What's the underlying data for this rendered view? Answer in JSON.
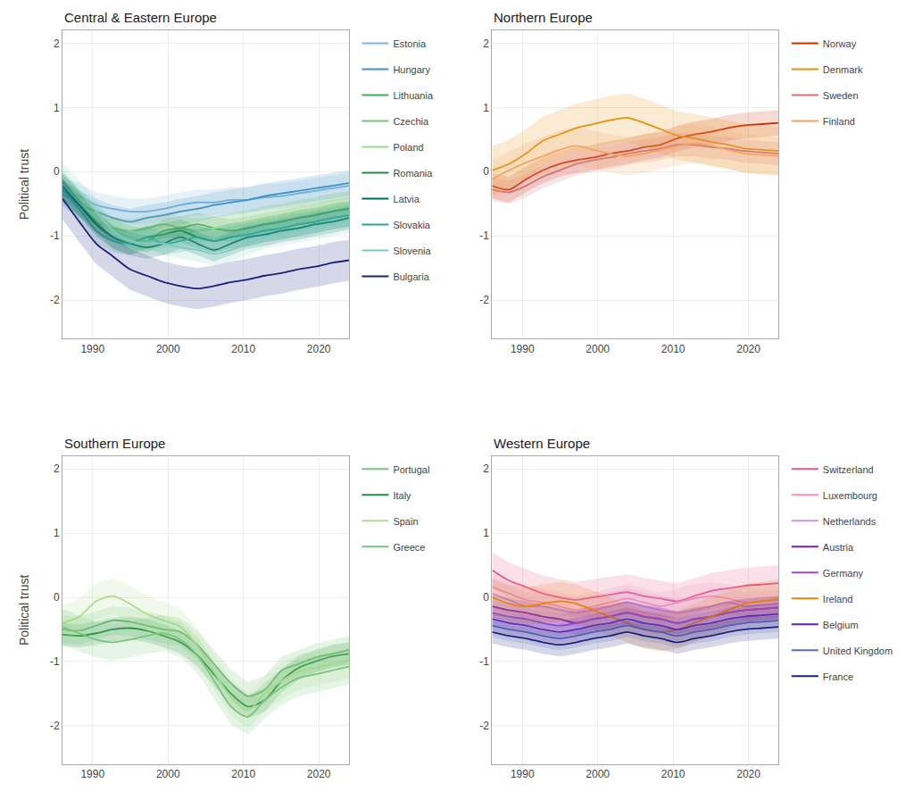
{
  "chart_data": [
    {
      "type": "line",
      "title": "Central & Eastern Europe",
      "ylabel": "Political trust",
      "x": [
        1986,
        1988.235294117647,
        1990.470588235294,
        1992.705882352941,
        1994.941176470588,
        1997.176470588235,
        1999.411764705882,
        2001.647058823529,
        2003.882352941176,
        2006.117647058824,
        2008.352941176471,
        2010.588235294118,
        2012.823529411765,
        2015.058823529412,
        2017.294117647059,
        2019.529411764706,
        2021.764705882353,
        2024
      ],
      "xlim": [
        1986,
        2024
      ],
      "xticks": [
        1990,
        2000,
        2010,
        2020
      ],
      "ylim": [
        -2.6,
        2.2
      ],
      "yticks": [
        -2,
        -1,
        0,
        1,
        2
      ],
      "grid": true,
      "series": [
        {
          "name": "Estonia",
          "color": "#7ab8d9",
          "values": [
            -0.3,
            -0.38,
            -0.52,
            -0.58,
            -0.62,
            -0.62,
            -0.58,
            -0.52,
            -0.48,
            -0.48,
            -0.44,
            -0.44,
            -0.4,
            -0.38,
            -0.34,
            -0.3,
            -0.26,
            -0.22
          ],
          "ci": 0.2
        },
        {
          "name": "Hungary",
          "color": "#4292c6",
          "values": [
            -0.35,
            -0.5,
            -0.62,
            -0.72,
            -0.78,
            -0.72,
            -0.68,
            -0.62,
            -0.58,
            -0.52,
            -0.48,
            -0.44,
            -0.38,
            -0.34,
            -0.3,
            -0.26,
            -0.22,
            -0.18
          ],
          "ci": 0.2
        },
        {
          "name": "Lithuania",
          "color": "#41ab5d",
          "values": [
            -0.15,
            -0.45,
            -0.72,
            -0.92,
            -1.02,
            -1.08,
            -0.92,
            -0.88,
            -0.82,
            -0.88,
            -0.92,
            -0.88,
            -0.82,
            -0.78,
            -0.72,
            -0.68,
            -0.62,
            -0.58
          ],
          "ci": 0.18
        },
        {
          "name": "Czechia",
          "color": "#74c476",
          "values": [
            -0.28,
            -0.52,
            -0.78,
            -0.88,
            -0.92,
            -0.88,
            -0.82,
            -0.88,
            -0.92,
            -0.88,
            -0.82,
            -0.78,
            -0.72,
            -0.68,
            -0.62,
            -0.58,
            -0.52,
            -0.48
          ],
          "ci": 0.18
        },
        {
          "name": "Poland",
          "color": "#a1d99b",
          "values": [
            -0.2,
            -0.48,
            -0.72,
            -0.92,
            -1.02,
            -1.08,
            -1.02,
            -0.98,
            -0.92,
            -0.88,
            -0.82,
            -0.78,
            -0.72,
            -0.68,
            -0.62,
            -0.58,
            -0.52,
            -0.48
          ],
          "ci": 0.18
        },
        {
          "name": "Romania",
          "color": "#238b45",
          "values": [
            -0.28,
            -0.52,
            -0.78,
            -1.02,
            -1.12,
            -1.02,
            -0.98,
            -0.92,
            -1.02,
            -1.08,
            -1.02,
            -0.98,
            -0.92,
            -0.88,
            -0.82,
            -0.78,
            -0.72,
            -0.68
          ],
          "ci": 0.18
        },
        {
          "name": "Latvia",
          "color": "#006d5b",
          "values": [
            -0.22,
            -0.52,
            -0.82,
            -1.02,
            -1.12,
            -1.18,
            -1.12,
            -1.02,
            -1.12,
            -1.22,
            -1.12,
            -1.02,
            -0.98,
            -0.92,
            -0.88,
            -0.82,
            -0.78,
            -0.72
          ],
          "ci": 0.18
        },
        {
          "name": "Slovakia",
          "color": "#26a69a",
          "values": [
            -0.28,
            -0.58,
            -0.92,
            -1.08,
            -1.12,
            -1.02,
            -1.12,
            -1.08,
            -1.02,
            -1.08,
            -1.02,
            -0.98,
            -0.92,
            -0.88,
            -0.82,
            -0.78,
            -0.72,
            -0.68
          ],
          "ci": 0.18
        },
        {
          "name": "Slovenia",
          "color": "#80cbc4",
          "values": [
            -0.05,
            -0.32,
            -0.62,
            -0.92,
            -1.08,
            -1.12,
            -1.12,
            -1.18,
            -1.22,
            -1.28,
            -1.22,
            -1.12,
            -1.02,
            -0.98,
            -0.92,
            -0.88,
            -0.82,
            -0.78
          ],
          "ci": 0.18
        },
        {
          "name": "Bulgaria",
          "color": "#1a237e",
          "values": [
            -0.42,
            -0.78,
            -1.12,
            -1.32,
            -1.52,
            -1.62,
            -1.72,
            -1.78,
            -1.82,
            -1.78,
            -1.72,
            -1.68,
            -1.62,
            -1.58,
            -1.52,
            -1.48,
            -1.42,
            -1.38
          ],
          "ci": 0.32
        }
      ]
    },
    {
      "type": "line",
      "title": "Northern Europe",
      "x": [
        1986,
        1988.235294117647,
        1990.470588235294,
        1992.705882352941,
        1994.941176470588,
        1997.176470588235,
        1999.411764705882,
        2001.647058823529,
        2003.882352941176,
        2006.117647058824,
        2008.352941176471,
        2010.588235294118,
        2012.823529411765,
        2015.058823529412,
        2017.294117647059,
        2019.529411764706,
        2021.764705882353,
        2024
      ],
      "xlim": [
        1986,
        2024
      ],
      "xticks": [
        1990,
        2000,
        2010,
        2020
      ],
      "ylim": [
        -2.6,
        2.2
      ],
      "yticks": [
        -2,
        -1,
        0,
        1,
        2
      ],
      "grid": true,
      "series": [
        {
          "name": "Norway",
          "color": "#cc2b00",
          "values": [
            -0.22,
            -0.28,
            -0.12,
            0.02,
            0.12,
            0.18,
            0.22,
            0.28,
            0.32,
            0.38,
            0.42,
            0.52,
            0.58,
            0.62,
            0.68,
            0.72,
            0.74,
            0.76
          ],
          "ci": 0.2
        },
        {
          "name": "Denmark",
          "color": "#e8900a",
          "values": [
            0.02,
            0.12,
            0.28,
            0.48,
            0.58,
            0.68,
            0.74,
            0.8,
            0.84,
            0.76,
            0.66,
            0.56,
            0.52,
            0.46,
            0.42,
            0.36,
            0.34,
            0.32
          ],
          "ci": 0.38
        },
        {
          "name": "Sweden",
          "color": "#d4727a",
          "values": [
            -0.28,
            -0.32,
            -0.22,
            -0.08,
            0.02,
            0.12,
            0.18,
            0.22,
            0.28,
            0.32,
            0.36,
            0.42,
            0.42,
            0.38,
            0.36,
            0.32,
            0.3,
            0.28
          ],
          "ci": 0.18
        },
        {
          "name": "Finland",
          "color": "#f4a460",
          "values": [
            -0.12,
            0.02,
            0.14,
            0.24,
            0.34,
            0.4,
            0.34,
            0.28,
            0.24,
            0.28,
            0.34,
            0.4,
            0.44,
            0.4,
            0.34,
            0.28,
            0.26,
            0.24
          ],
          "ci": 0.3
        }
      ]
    },
    {
      "type": "line",
      "title": "Southern Europe",
      "ylabel": "Political trust",
      "x": [
        1986,
        1988.235294117647,
        1990.470588235294,
        1992.705882352941,
        1994.941176470588,
        1997.176470588235,
        1999.411764705882,
        2001.647058823529,
        2003.882352941176,
        2006.117647058824,
        2008.352941176471,
        2010.588235294118,
        2012.823529411765,
        2015.058823529412,
        2017.294117647059,
        2019.529411764706,
        2021.764705882353,
        2024
      ],
      "xlim": [
        1986,
        2024
      ],
      "xticks": [
        1990,
        2000,
        2010,
        2020
      ],
      "ylim": [
        -2.6,
        2.2
      ],
      "yticks": [
        -2,
        -1,
        0,
        1,
        2
      ],
      "grid": true,
      "series": [
        {
          "name": "Portugal",
          "color": "#74c476",
          "values": [
            -0.5,
            -0.52,
            -0.44,
            -0.36,
            -0.38,
            -0.44,
            -0.5,
            -0.54,
            -0.74,
            -1.04,
            -1.34,
            -1.54,
            -1.44,
            -1.14,
            -1.04,
            -0.94,
            -0.88,
            -0.82
          ],
          "ci": 0.22
        },
        {
          "name": "Italy",
          "color": "#238b45",
          "values": [
            -0.58,
            -0.6,
            -0.56,
            -0.5,
            -0.48,
            -0.52,
            -0.6,
            -0.7,
            -0.9,
            -1.2,
            -1.5,
            -1.7,
            -1.6,
            -1.3,
            -1.1,
            -1.0,
            -0.92,
            -0.88
          ],
          "ci": 0.18
        },
        {
          "name": "Spain",
          "color": "#addd8e",
          "values": [
            -0.4,
            -0.3,
            -0.06,
            0.02,
            -0.1,
            -0.26,
            -0.36,
            -0.46,
            -0.76,
            -1.16,
            -1.56,
            -1.76,
            -1.5,
            -1.3,
            -1.16,
            -1.1,
            -1.04,
            -0.98
          ],
          "ci": 0.28
        },
        {
          "name": "Greece",
          "color": "#78c679",
          "values": [
            -0.46,
            -0.56,
            -0.66,
            -0.7,
            -0.66,
            -0.6,
            -0.56,
            -0.66,
            -0.9,
            -1.3,
            -1.7,
            -1.86,
            -1.6,
            -1.4,
            -1.26,
            -1.2,
            -1.14,
            -1.08
          ],
          "ci": 0.28
        }
      ]
    },
    {
      "type": "line",
      "title": "Western Europe",
      "x": [
        1986,
        1988.235294117647,
        1990.470588235294,
        1992.705882352941,
        1994.941176470588,
        1997.176470588235,
        1999.411764705882,
        2001.647058823529,
        2003.882352941176,
        2006.117647058824,
        2008.352941176471,
        2010.588235294118,
        2012.823529411765,
        2015.058823529412,
        2017.294117647059,
        2019.529411764706,
        2021.764705882353,
        2024
      ],
      "xlim": [
        1986,
        2024
      ],
      "xticks": [
        1990,
        2000,
        2010,
        2020
      ],
      "ylim": [
        -2.6,
        2.2
      ],
      "yticks": [
        -2,
        -1,
        0,
        1,
        2
      ],
      "grid": true,
      "series": [
        {
          "name": "Switzerland",
          "color": "#e8528c",
          "values": [
            0.42,
            0.26,
            0.16,
            0.06,
            0.0,
            -0.04,
            0.0,
            0.04,
            0.08,
            0.02,
            -0.02,
            -0.06,
            0.02,
            0.1,
            0.14,
            0.18,
            0.2,
            0.22
          ],
          "ci": 0.28
        },
        {
          "name": "Luxembourg",
          "color": "#f48fb1",
          "values": [
            0.16,
            0.06,
            -0.04,
            -0.08,
            -0.14,
            -0.2,
            -0.14,
            -0.08,
            -0.02,
            -0.08,
            -0.14,
            -0.08,
            -0.02,
            0.02,
            -0.02,
            -0.08,
            -0.06,
            -0.04
          ],
          "ci": 0.22
        },
        {
          "name": "Netherlands",
          "color": "#ce93d8",
          "values": [
            0.06,
            -0.04,
            -0.14,
            -0.14,
            -0.2,
            -0.24,
            -0.2,
            -0.14,
            -0.08,
            -0.14,
            -0.2,
            -0.24,
            -0.2,
            -0.14,
            -0.08,
            -0.14,
            -0.12,
            -0.1
          ],
          "ci": 0.22
        },
        {
          "name": "Austria",
          "color": "#7b1fa2",
          "values": [
            -0.14,
            -0.2,
            -0.24,
            -0.3,
            -0.34,
            -0.4,
            -0.34,
            -0.3,
            -0.24,
            -0.3,
            -0.34,
            -0.4,
            -0.34,
            -0.3,
            -0.24,
            -0.2,
            -0.18,
            -0.16
          ],
          "ci": 0.18
        },
        {
          "name": "Germany",
          "color": "#9c4dcc",
          "values": [
            -0.24,
            -0.3,
            -0.34,
            -0.4,
            -0.44,
            -0.4,
            -0.34,
            -0.3,
            -0.24,
            -0.3,
            -0.34,
            -0.4,
            -0.34,
            -0.3,
            -0.24,
            -0.2,
            -0.18,
            -0.16
          ],
          "ci": 0.18
        },
        {
          "name": "Ireland",
          "color": "#e8820a",
          "values": [
            0.0,
            -0.1,
            -0.14,
            -0.1,
            -0.06,
            -0.1,
            -0.2,
            -0.3,
            -0.4,
            -0.5,
            -0.54,
            -0.5,
            -0.4,
            -0.3,
            -0.2,
            -0.1,
            -0.06,
            -0.02
          ],
          "ci": 0.3
        },
        {
          "name": "Belgium",
          "color": "#6a1bb0",
          "values": [
            -0.34,
            -0.4,
            -0.44,
            -0.5,
            -0.54,
            -0.5,
            -0.44,
            -0.4,
            -0.34,
            -0.4,
            -0.44,
            -0.5,
            -0.44,
            -0.4,
            -0.34,
            -0.3,
            -0.28,
            -0.26
          ],
          "ci": 0.18
        },
        {
          "name": "United Kingdom",
          "color": "#5c6bc0",
          "values": [
            -0.44,
            -0.5,
            -0.54,
            -0.6,
            -0.64,
            -0.6,
            -0.54,
            -0.5,
            -0.44,
            -0.5,
            -0.54,
            -0.6,
            -0.54,
            -0.5,
            -0.44,
            -0.4,
            -0.38,
            -0.36
          ],
          "ci": 0.18
        },
        {
          "name": "France",
          "color": "#1a237e",
          "values": [
            -0.54,
            -0.6,
            -0.64,
            -0.7,
            -0.74,
            -0.7,
            -0.64,
            -0.6,
            -0.54,
            -0.6,
            -0.64,
            -0.7,
            -0.64,
            -0.6,
            -0.54,
            -0.5,
            -0.48,
            -0.46
          ],
          "ci": 0.18
        }
      ]
    }
  ]
}
